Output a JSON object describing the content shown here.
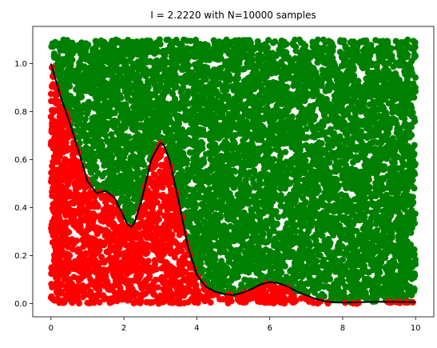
{
  "chart_data": {
    "type": "scatter",
    "title": "I =  2.2220 with N=10000 samples",
    "xlabel": "",
    "ylabel": "",
    "xlim": [
      -0.5,
      10.5
    ],
    "ylim": [
      -0.055,
      1.155
    ],
    "x_ticks": [
      0,
      2,
      4,
      6,
      8,
      10
    ],
    "x_tick_labels": [
      "0",
      "2",
      "4",
      "6",
      "8",
      "10"
    ],
    "y_ticks": [
      0.0,
      0.2,
      0.4,
      0.6,
      0.8,
      1.0
    ],
    "y_tick_labels": [
      "0.0",
      "0.2",
      "0.4",
      "0.6",
      "0.8",
      "1.0"
    ],
    "grid": false,
    "sampling_region": {
      "x": [
        0,
        10
      ],
      "y": [
        0,
        1.1
      ]
    },
    "n_samples": 10000,
    "integral_estimate": 2.222,
    "series": [
      {
        "role": "samples below curve",
        "color": "#ff0000"
      },
      {
        "role": "samples above curve",
        "color": "#008000"
      },
      {
        "role": "function curve",
        "color": "#000000",
        "x": [
          0,
          0.25,
          0.5,
          0.75,
          1.0,
          1.25,
          1.5,
          1.75,
          2.0,
          2.1,
          2.2,
          2.3,
          2.5,
          2.75,
          3.0,
          3.1,
          3.25,
          3.5,
          3.75,
          4.0,
          4.25,
          4.5,
          4.75,
          5.0,
          5.25,
          5.5,
          5.75,
          6.0,
          6.25,
          6.5,
          6.75,
          7.0,
          7.25,
          7.5,
          7.75,
          8.0,
          8.5,
          9.0,
          9.5,
          10.0
        ],
        "y": [
          1.0,
          0.87,
          0.76,
          0.64,
          0.51,
          0.46,
          0.47,
          0.44,
          0.36,
          0.33,
          0.32,
          0.34,
          0.44,
          0.6,
          0.67,
          0.66,
          0.6,
          0.43,
          0.24,
          0.12,
          0.07,
          0.05,
          0.04,
          0.035,
          0.045,
          0.06,
          0.08,
          0.09,
          0.085,
          0.07,
          0.05,
          0.035,
          0.02,
          0.01,
          0.005,
          0.004,
          0.006,
          0.008,
          0.007,
          0.006
        ]
      }
    ]
  }
}
